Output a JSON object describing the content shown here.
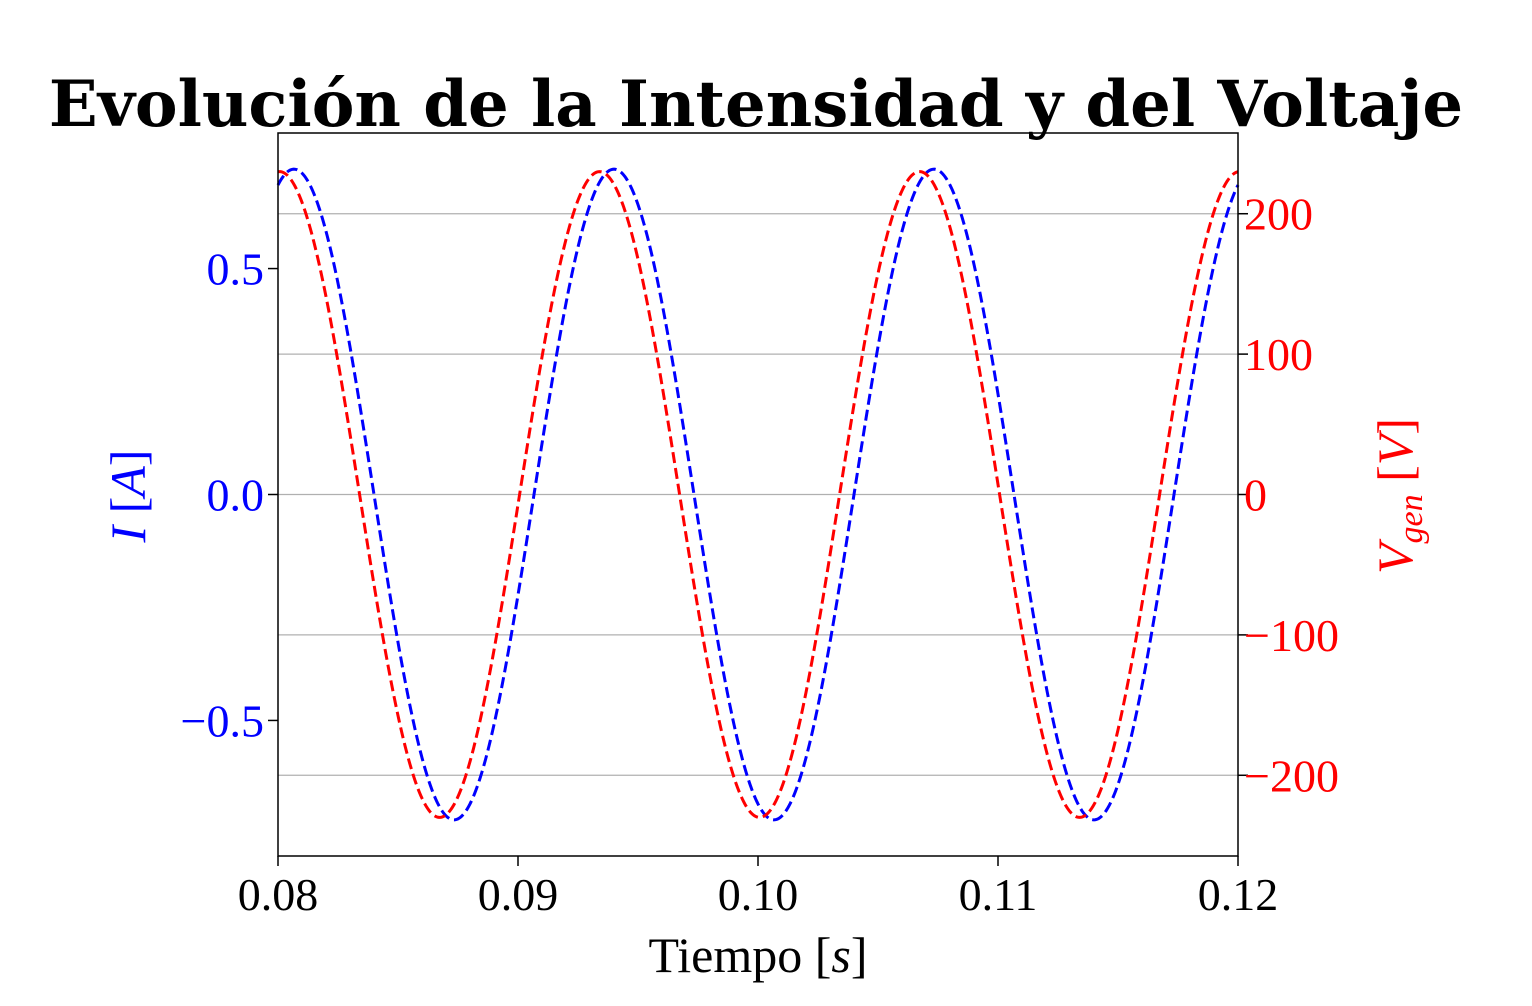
{
  "chart_data": {
    "type": "line",
    "title": "Evolución de la Intensidad y del Voltaje",
    "xlabel": {
      "text": "Tiempo ",
      "symbol": "s"
    },
    "ylabel_left": {
      "symbol": "I",
      "unit": "A"
    },
    "ylabel_right": {
      "symbol": "V",
      "subscript": "gen",
      "unit": "V"
    },
    "xlim": [
      0.08,
      0.12
    ],
    "ylim_left": [
      -0.8,
      0.8
    ],
    "ylim_right": [
      -257.5,
      257.5
    ],
    "x_ticks": [
      "0.08",
      "0.09",
      "0.10",
      "0.11",
      "0.12"
    ],
    "y_ticks_left": [
      {
        "value": 0.5,
        "label": "0.5"
      },
      {
        "value": 0.0,
        "label": "0.0"
      },
      {
        "value": -0.5,
        "label": "−0.5"
      }
    ],
    "y_ticks_right": [
      {
        "value": 200,
        "label": "200"
      },
      {
        "value": 100,
        "label": "100"
      },
      {
        "value": 0,
        "label": "0"
      },
      {
        "value": -100,
        "label": "−100"
      },
      {
        "value": -200,
        "label": "−200"
      }
    ],
    "grid": "horizontal, right axis",
    "series": [
      {
        "axis": "left",
        "amplitude": 0.72,
        "frequency_hz": 75,
        "peak_time": 0.094,
        "color": "#0000ff",
        "style": "dashed"
      },
      {
        "axis": "right",
        "amplitude": 230,
        "frequency_hz": 75,
        "peak_time": 0.0934,
        "color": "#ff0000",
        "style": "dashed"
      }
    ]
  },
  "colors": {
    "left_axis": "#0000ff",
    "right_axis": "#ff0000",
    "grid": "#b0b0b0"
  }
}
